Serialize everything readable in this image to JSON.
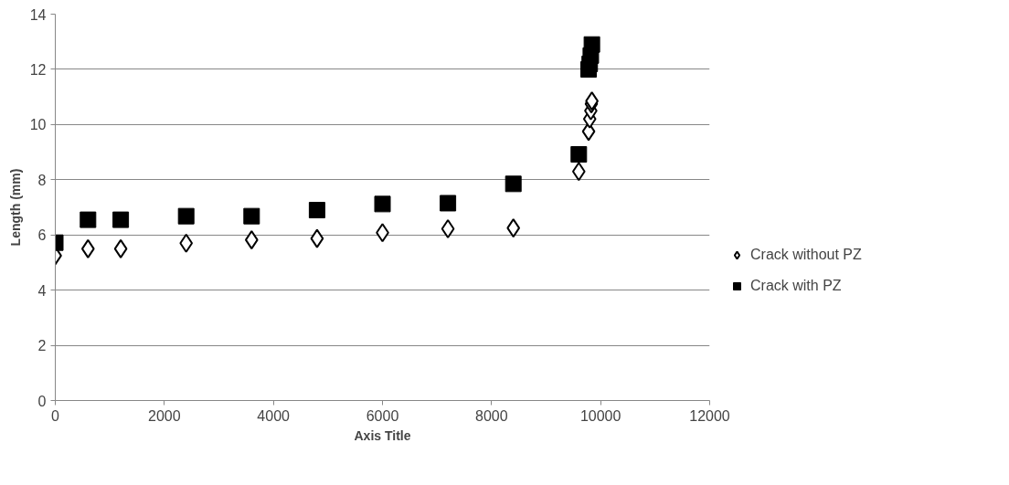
{
  "chart_data": {
    "type": "scatter",
    "xlabel": "Axis Title",
    "ylabel": "Length (mm)",
    "xlim": [
      0,
      12000
    ],
    "xticks": [
      0,
      2000,
      4000,
      6000,
      8000,
      10000,
      12000
    ],
    "ylim": [
      0,
      14
    ],
    "yticks": [
      0,
      2,
      4,
      6,
      8,
      10,
      12,
      14
    ],
    "grid": "y",
    "legend": "right",
    "series": [
      {
        "name": "Crack without PZ",
        "color": "#000000",
        "marker": "diamond",
        "x": [
          0,
          600,
          1200,
          2400,
          3600,
          4800,
          6000,
          7200,
          8400,
          9600,
          9780,
          9800,
          9820,
          9830,
          9840
        ],
        "values": [
          5.25,
          5.5,
          5.5,
          5.7,
          5.82,
          5.87,
          6.08,
          6.22,
          6.25,
          8.3,
          9.75,
          10.2,
          10.5,
          10.75,
          10.85
        ]
      },
      {
        "name": "Crack with PZ",
        "color": "#000000",
        "marker": "square",
        "x": [
          0,
          600,
          1200,
          2400,
          3600,
          4800,
          6000,
          7200,
          8400,
          9600,
          9780,
          9800,
          9820,
          9840
        ],
        "values": [
          5.72,
          6.55,
          6.55,
          6.68,
          6.68,
          6.9,
          7.12,
          7.15,
          7.85,
          8.92,
          12.0,
          12.2,
          12.5,
          12.9
        ]
      }
    ]
  }
}
